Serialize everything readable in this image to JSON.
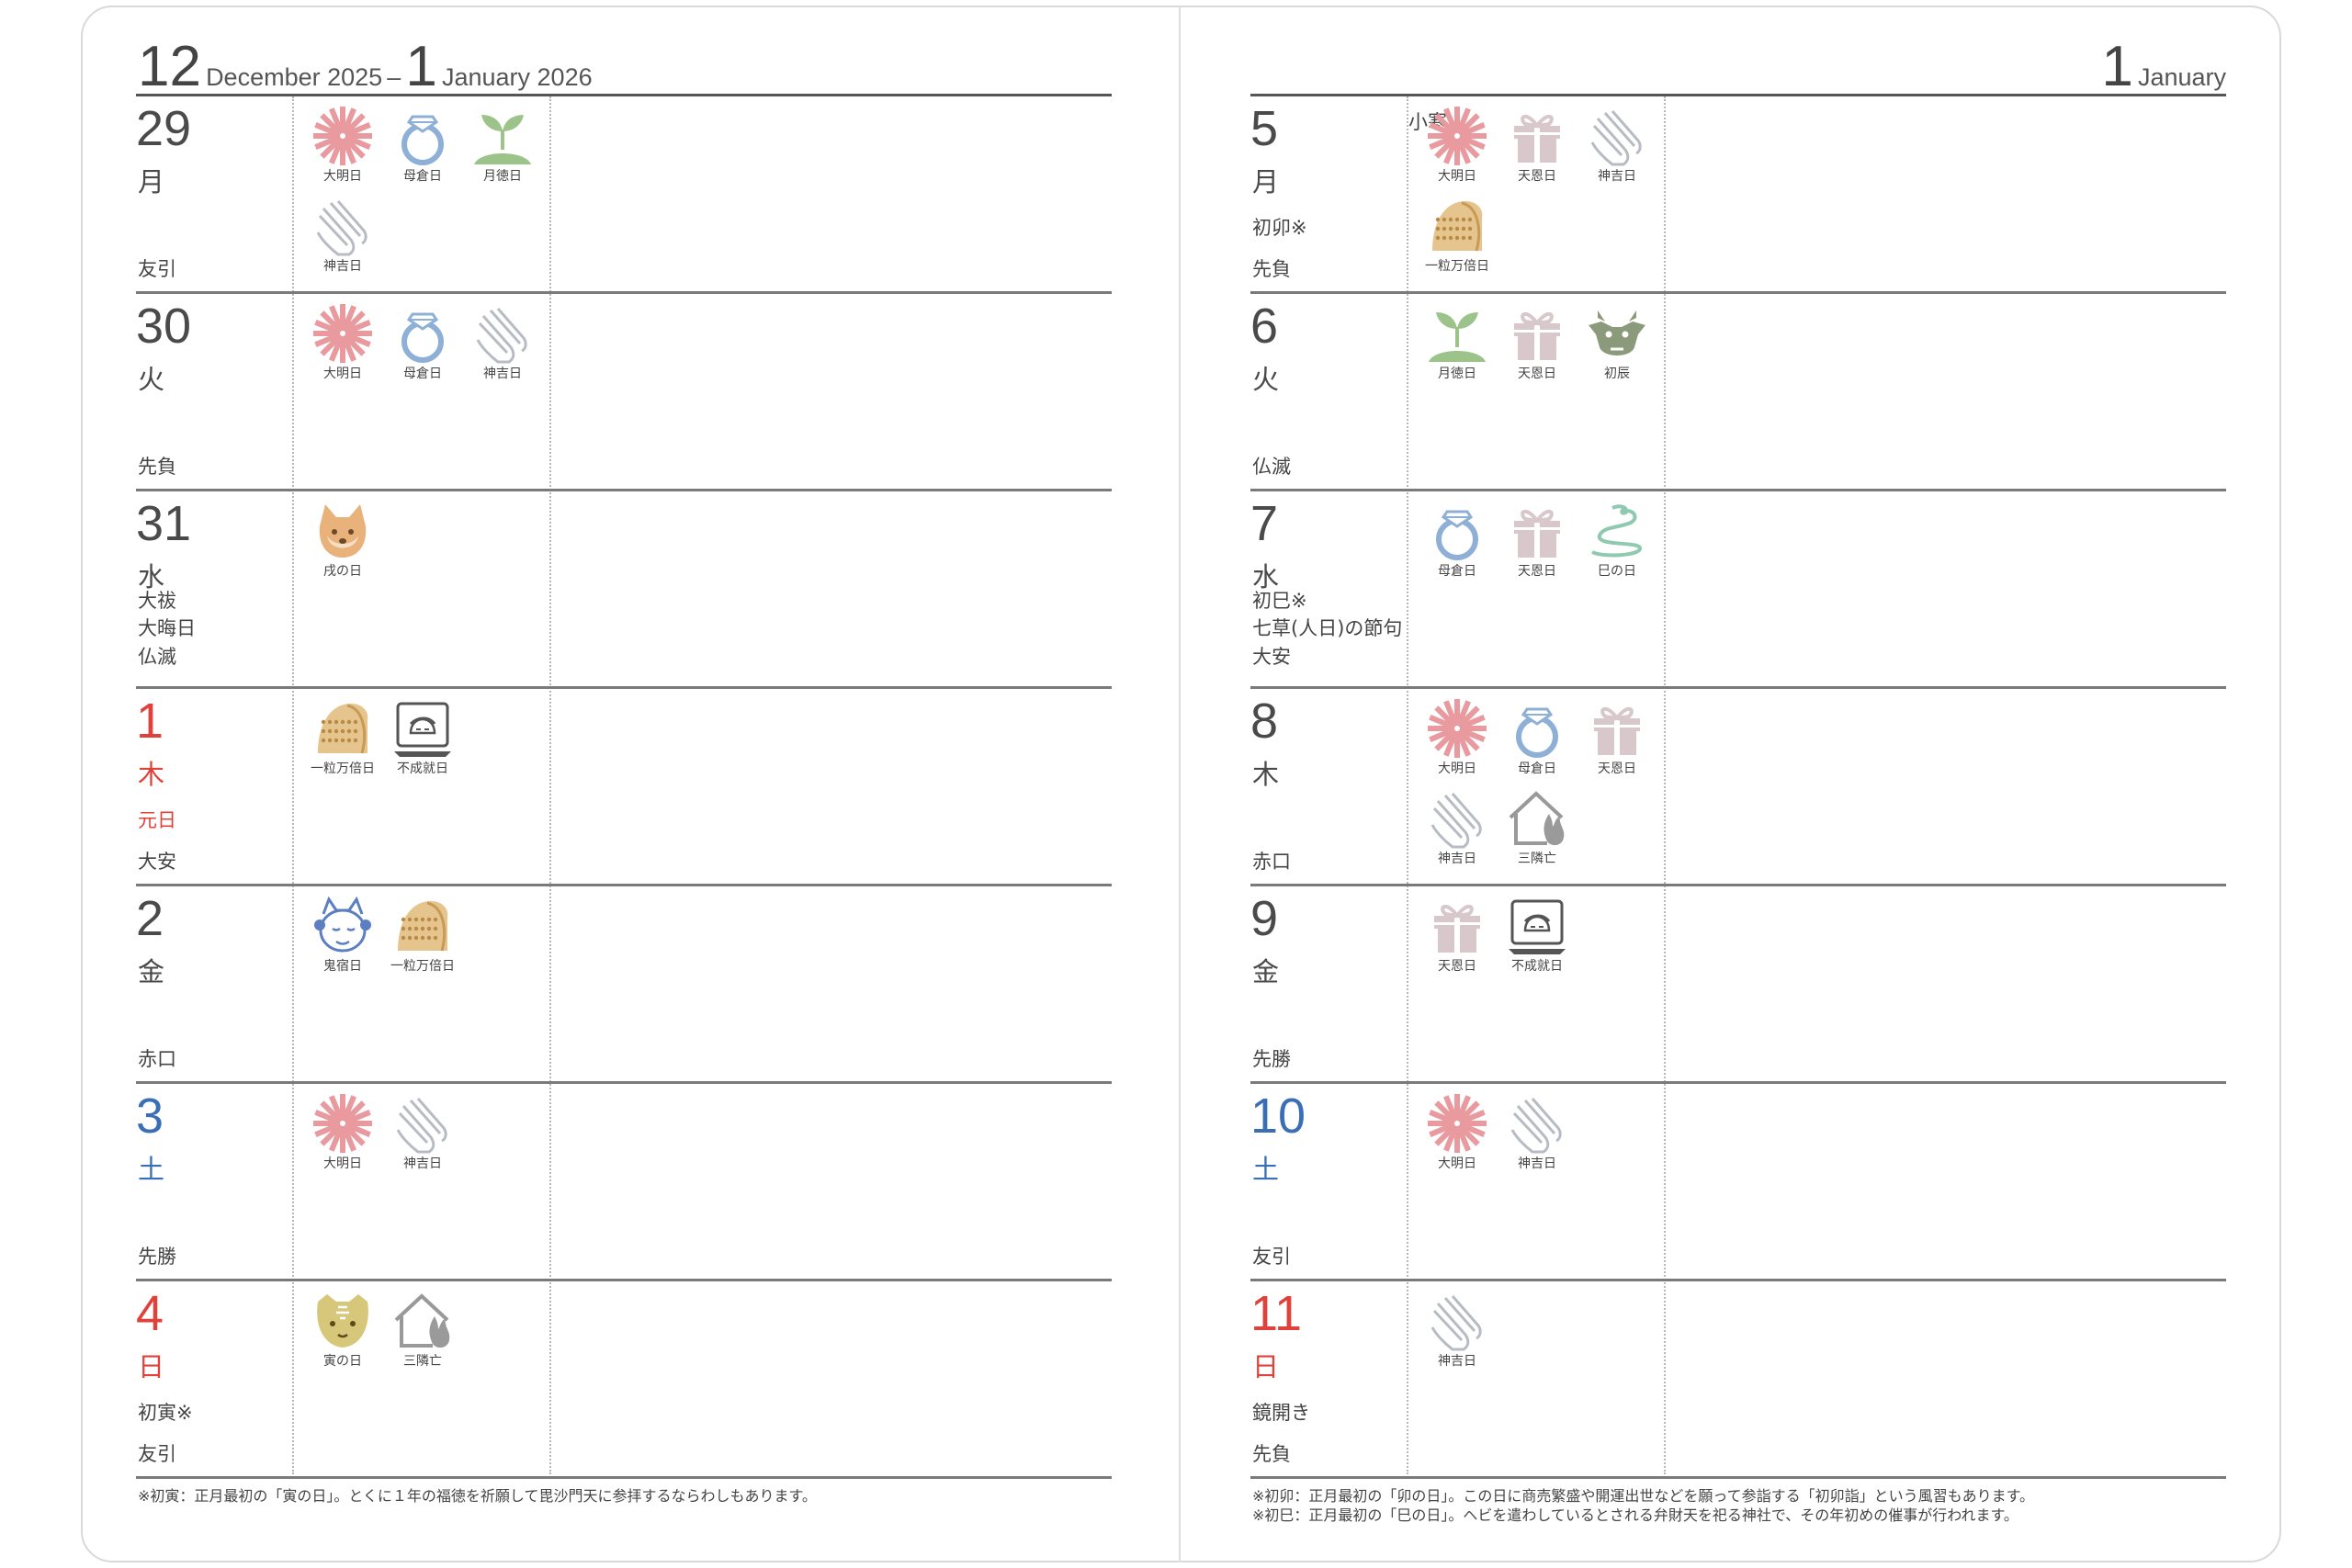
{
  "left": {
    "header": {
      "month1": "12",
      "label1": "December 2025",
      "dash": "–",
      "month2": "1",
      "label2": "January 2026"
    },
    "days": [
      {
        "num": "29",
        "wday": "月",
        "events": [],
        "rokuyo": "友引",
        "icons": [
          {
            "type": "taimei",
            "label": "大明日"
          },
          {
            "type": "bosou",
            "label": "母倉日"
          },
          {
            "type": "gettoku",
            "label": "月徳日"
          },
          {
            "type": "kamiyoshi",
            "label": "神吉日"
          }
        ]
      },
      {
        "num": "30",
        "wday": "火",
        "events": [],
        "rokuyo": "先負",
        "icons": [
          {
            "type": "taimei",
            "label": "大明日"
          },
          {
            "type": "bosou",
            "label": "母倉日"
          },
          {
            "type": "kamiyoshi",
            "label": "神吉日"
          }
        ]
      },
      {
        "num": "31",
        "wday": "水",
        "events": [
          "大祓",
          "大晦日"
        ],
        "rokuyo": "仏滅",
        "icons": [
          {
            "type": "inu",
            "label": "戌の日"
          }
        ]
      },
      {
        "num": "1",
        "wday": "木",
        "color": "red",
        "events": [
          "元日"
        ],
        "rokuyo": "大安",
        "icons": [
          {
            "type": "ichiryu",
            "label": "一粒万倍日"
          },
          {
            "type": "fujo",
            "label": "不成就日"
          }
        ]
      },
      {
        "num": "2",
        "wday": "金",
        "events": [],
        "rokuyo": "赤口",
        "icons": [
          {
            "type": "kishuku",
            "label": "鬼宿日"
          },
          {
            "type": "ichiryu",
            "label": "一粒万倍日"
          }
        ]
      },
      {
        "num": "3",
        "wday": "土",
        "color": "blue",
        "events": [],
        "rokuyo": "先勝",
        "icons": [
          {
            "type": "taimei",
            "label": "大明日"
          },
          {
            "type": "kamiyoshi",
            "label": "神吉日"
          }
        ]
      },
      {
        "num": "4",
        "wday": "日",
        "color": "red",
        "events": [
          "初寅※"
        ],
        "rokuyo": "友引",
        "icons": [
          {
            "type": "tora",
            "label": "寅の日"
          },
          {
            "type": "sanrin",
            "label": "三隣亡"
          }
        ]
      }
    ],
    "footnotes": [
      "※初寅：正月最初の「寅の日」。とくに１年の福徳を祈願して毘沙門天に参拝するならわしもあります。"
    ]
  },
  "right": {
    "header": {
      "month": "1",
      "label": "January"
    },
    "days": [
      {
        "num": "5",
        "wday": "月",
        "sekki": "小寒",
        "events": [
          "初卯※"
        ],
        "rokuyo": "先負",
        "icons": [
          {
            "type": "taimei",
            "label": "大明日"
          },
          {
            "type": "tenon",
            "label": "天恩日"
          },
          {
            "type": "kamiyoshi",
            "label": "神吉日"
          },
          {
            "type": "ichiryu",
            "label": "一粒万倍日"
          }
        ]
      },
      {
        "num": "6",
        "wday": "火",
        "events": [],
        "rokuyo": "仏滅",
        "icons": [
          {
            "type": "gettoku",
            "label": "月徳日"
          },
          {
            "type": "tenon",
            "label": "天恩日"
          },
          {
            "type": "tatsu",
            "label": "初辰"
          }
        ]
      },
      {
        "num": "7",
        "wday": "水",
        "events": [
          "初巳※",
          "七草(人日)の節句"
        ],
        "rokuyo": "大安",
        "icons": [
          {
            "type": "bosou",
            "label": "母倉日"
          },
          {
            "type": "tenon",
            "label": "天恩日"
          },
          {
            "type": "mi",
            "label": "巳の日"
          }
        ]
      },
      {
        "num": "8",
        "wday": "木",
        "events": [],
        "rokuyo": "赤口",
        "icons": [
          {
            "type": "taimei",
            "label": "大明日"
          },
          {
            "type": "bosou",
            "label": "母倉日"
          },
          {
            "type": "tenon",
            "label": "天恩日"
          },
          {
            "type": "kamiyoshi",
            "label": "神吉日"
          },
          {
            "type": "sanrin",
            "label": "三隣亡"
          }
        ]
      },
      {
        "num": "9",
        "wday": "金",
        "events": [],
        "rokuyo": "先勝",
        "icons": [
          {
            "type": "tenon",
            "label": "天恩日"
          },
          {
            "type": "fujo",
            "label": "不成就日"
          }
        ]
      },
      {
        "num": "10",
        "wday": "土",
        "color": "blue",
        "events": [],
        "rokuyo": "友引",
        "icons": [
          {
            "type": "taimei",
            "label": "大明日"
          },
          {
            "type": "kamiyoshi",
            "label": "神吉日"
          }
        ]
      },
      {
        "num": "11",
        "wday": "日",
        "color": "red",
        "events": [
          "鏡開き"
        ],
        "rokuyo": "先負",
        "icons": [
          {
            "type": "kamiyoshi",
            "label": "神吉日"
          }
        ]
      }
    ],
    "footnotes": [
      "※初卯：正月最初の「卯の日」。この日に商売繁盛や開運出世などを願って参詣する「初卯詣」という風習もあります。",
      "※初巳：正月最初の「巳の日」。ヘビを遣わしているとされる弁財天を祀る神社で、その年初めの催事が行われます。"
    ]
  },
  "colors": {
    "sunday": "#e0413a",
    "saturday": "#3a6fb5",
    "rule": "#555555"
  }
}
